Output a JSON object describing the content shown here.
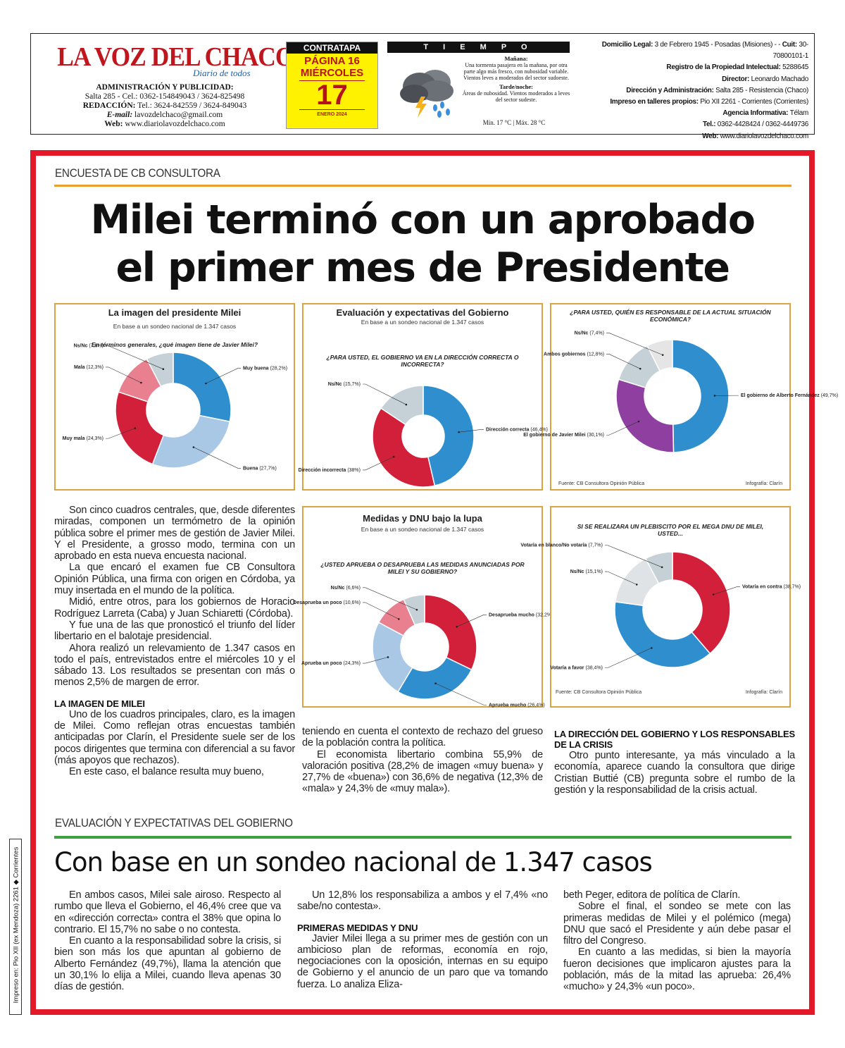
{
  "masthead": {
    "logo_main": "LA VOZ DEL CHACO",
    "logo_sub": "Diario de todos",
    "admin_title": "ADMINISTRACIÓN Y PUBLICIDAD:",
    "admin_line": "Salta 285 - Cel.: 0362-154849043 / 3624-825498",
    "redaccion_label": "REDACCIÓN:",
    "redaccion_line": "Tel.: 3624-842559 / 3624-849043",
    "email_label": "E-mail:",
    "email": "lavozdelchaco@gmail.com",
    "web_label": "Web:",
    "web": "www.diariolavozdelchaco.com"
  },
  "page_box": {
    "section": "CONTRATAPA",
    "page": "PÁGINA 16",
    "weekday": "MIÉRCOLES",
    "day": "17",
    "month": "ENERO 2024"
  },
  "weather": {
    "title": "T I E M P O",
    "tomorrow_label": "Mañana:",
    "tomorrow_text": "Una tormenta pasajera en la mañana, por otra parte algo más fresco, con nubosidad variable. Vientos leves a moderados del sector sudoeste.",
    "night_label": "Tarde/noche:",
    "night_text": "Áreas de nubosidad. Vientos moderados a leves del sector sudeste.",
    "minmax": "Mín. 17 °C | Máx. 28 °C",
    "icon": "storm-cloud-icon"
  },
  "legal": [
    {
      "label": "Domicilio Legal:",
      "value": "3 de Febrero 1945 - Posadas (Misiones) -"
    },
    {
      "label": "Cuit:",
      "value": "30-70800101-1"
    },
    {
      "label": "Registro de la Propiedad Intelectual:",
      "value": "5288645"
    },
    {
      "label": "Director:",
      "value": "Leonardo Machado"
    },
    {
      "label": "Dirección y Administración:",
      "value": "Salta 285 - Resistencia (Chaco)"
    },
    {
      "label": "Impreso en talleres propios:",
      "value": "Pio XII 2261 - Corrientes (Corrientes)"
    },
    {
      "label": "Agencia Informativa:",
      "value": "Télam"
    },
    {
      "label": "Tel.:",
      "value": "0362-4428424 / 0362-4449736"
    },
    {
      "label": "Web:",
      "value": "www.diariolavozdelchaco.com"
    }
  ],
  "article": {
    "kicker": "ENCUESTA DE CB CONSULTORA",
    "headline_1": "Milei terminó con un aprobado",
    "headline_2": "el primer mes de Presidente",
    "intro": [
      "Son cinco cuadros centrales, que, desde diferentes miradas, componen un termómetro de la opinión pública sobre el primer mes de gestión de Javier Milei. Y el Presidente, a grosso modo, termina con un aprobado en esta nueva encuesta nacional.",
      "La que encaró el examen fue CB Consultora Opinión Pública, una firma con origen en Córdoba, ya muy insertada en el mundo de la política.",
      "Midió, entre otros, para los gobiernos de Horacio Rodríguez Larreta (Caba) y Juan Schiaretti (Córdoba).",
      "Y fue una de las que pronosticó el triunfo del líder libertario en el balotaje presidencial.",
      "Ahora realizó un relevamiento de 1.347 casos en todo el país, entrevistados entre el miércoles 10 y el sábado 13. Los resultados se presentan con más o menos 2,5% de margen de error."
    ],
    "h_imagen": "LA IMAGEN DE MILEI",
    "imagen_text": [
      "Uno de los cuadros principales, claro, es la imagen de Milei. Como reflejan otras encuestas también anticipadas por Clarín, el Presidente suele ser de los pocos dirigentes que termina con diferencial a su favor (más apoyos que rechazos).",
      "En este caso, el balance resulta muy bueno,"
    ],
    "mid_text_1": "teniendo en cuenta el contexto de rechazo del grueso de la población contra la política.",
    "mid_text_2": "El economista libertario combina 55,9% de valoración positiva (28,2% de imagen «muy buena» y 27,7% de «buena») con 36,6% de negativa (12,3% de «mala» y 24,3% de «muy mala»).",
    "h_direccion": "LA DIRECCIÓN DEL GOBIERNO Y LOS RESPONSABLES DE LA CRISIS",
    "direccion_text": "Otro punto interesante, ya más vinculado a la economía, aparece cuando la consultora que dirige Cristian Buttié (CB) pregunta sobre el rumbo de la gestión y la responsabilidad de la crisis actual.",
    "kicker2": "EVALUACIÓN Y EXPECTATIVAS DEL GOBIERNO",
    "subhead": "Con base en un sondeo nacional de 1.347 casos",
    "col1": [
      "En ambos casos, Milei sale airoso. Respecto al rumbo que lleva el Gobierno, el 46,4% cree que va en «dirección correcta» contra el 38% que opina lo contrario. El 15,7% no sabe o no contesta.",
      "En cuanto a la responsabilidad sobre la crisis, si bien son más los que apuntan al gobierno de Alberto Fernández (49,7%), llama la atención que un 30,1% lo elija a Milei, cuando lleva apenas 30 días de gestión."
    ],
    "col2_p1": "Un 12,8% los responsabiliza a ambos y el 7,4% «no sabe/no contesta».",
    "h_medidas": "PRIMERAS MEDIDAS Y DNU",
    "col2_p2": "Javier Milei llega a su primer mes de gestión con un ambicioso plan de reformas, economía en rojo, negociaciones con la oposición, internas en su equipo de Gobierno y el anuncio de un paro que va tomando fuerza. Lo analiza Eliza-",
    "col3": [
      "beth Peger, editora de política de Clarín.",
      "Sobre el final, el sondeo se mete con las primeras medidas de Milei y el polémico (mega) DNU que sacó el Presidente y aún debe pasar el filtro del Congreso.",
      "En cuanto a las medidas, si bien la mayoría fueron decisiones que implicaron ajustes para la población, más de la mitad las aprueba: 26,4% «mucho» y 24,3% «un poco»."
    ],
    "print_side": "Impreso en: Pio XII (ex Mendoza) 2261 ◆ Corrientes"
  },
  "chart_data": [
    {
      "type": "pie",
      "title": "La imagen del presidente Milei",
      "subtitle": "En base a un sondeo nacional de 1.347 casos",
      "question": "En términos generales, ¿qué imagen tiene de Javier Milei?",
      "slices": [
        {
          "label": "Muy buena (28,2%)",
          "value": 28.2,
          "color": "#2f8fce"
        },
        {
          "label": "Buena (27,7%)",
          "value": 27.7,
          "color": "#a9c8e6"
        },
        {
          "label": "Muy mala (24,3%)",
          "value": 24.3,
          "color": "#d3203a"
        },
        {
          "label": "Mala (12,3%)",
          "value": 12.3,
          "color": "#e98090"
        },
        {
          "label": "Ns/Nc (7,6%)",
          "value": 7.6,
          "color": "#c5d1d6"
        }
      ]
    },
    {
      "type": "pie",
      "title": "Evaluación y expectativas del Gobierno",
      "subtitle": "En base a un sondeo nacional de 1.347 casos",
      "question": "¿PARA USTED, EL GOBIERNO VA EN LA DIRECCIÓN CORRECTA O INCORRECTA?",
      "slices": [
        {
          "label": "Dirección correcta (46,4%)",
          "value": 46.4,
          "color": "#2f8fce"
        },
        {
          "label": "Dirección incorrecta (38%)",
          "value": 38,
          "color": "#d3203a"
        },
        {
          "label": "Ns/Nc (15,7%)",
          "value": 15.7,
          "color": "#c5d1d6"
        }
      ]
    },
    {
      "type": "pie",
      "title": "",
      "question": "¿PARA USTED, QUIÉN ES RESPONSABLE DE LA ACTUAL SITUACIÓN ECONÓMICA?",
      "source": "Fuente: CB Consultora Opinión Pública",
      "credit": "Infografía: Clarín",
      "slices": [
        {
          "label": "El gobierno de Alberto Fernández (49,7%)",
          "value": 49.7,
          "color": "#2f8fce"
        },
        {
          "label": "El gobierno de Javier Milei (30,1%)",
          "value": 30.1,
          "color": "#8e3fa0"
        },
        {
          "label": "Ambos gobiernos (12,8%)",
          "value": 12.8,
          "color": "#c5d1d6"
        },
        {
          "label": "Ns/Nc (7,4%)",
          "value": 7.4,
          "color": "#e5e5e5"
        }
      ]
    },
    {
      "type": "pie",
      "title": "Medidas y DNU bajo la lupa",
      "subtitle": "En base a un sondeo nacional de 1.347 casos",
      "question": "¿USTED APRUEBA O DESAPRUEBA LAS MEDIDAS ANUNCIADAS POR MILEI Y SU GOBIERNO?",
      "slices": [
        {
          "label": "Desaprueba mucho (32,2%)",
          "value": 32.2,
          "color": "#d3203a"
        },
        {
          "label": "Aprueba mucho (26,4%)",
          "value": 26.4,
          "color": "#2f8fce"
        },
        {
          "label": "Aprueba un poco (24,3%)",
          "value": 24.3,
          "color": "#a9c8e6"
        },
        {
          "label": "Desaprueba un poco (10,6%)",
          "value": 10.6,
          "color": "#e98090"
        },
        {
          "label": "Ns/Nc (6,6%)",
          "value": 6.6,
          "color": "#c5d1d6"
        }
      ]
    },
    {
      "type": "pie",
      "title": "",
      "question": "SI SE REALIZARA UN PLEBISCITO POR EL MEGA DNU DE MILEI, USTED...",
      "source": "Fuente: CB Consultora Opinión Pública",
      "credit": "Infografía: Clarín",
      "slices": [
        {
          "label": "Votaría en contra (38,7%)",
          "value": 38.7,
          "color": "#d3203a"
        },
        {
          "label": "Votaría a favor (38,4%)",
          "value": 38.4,
          "color": "#2f8fce"
        },
        {
          "label": "Ns/Nc (15,1%)",
          "value": 15.1,
          "color": "#e0e3e5"
        },
        {
          "label": "Votaría en blanco/No votaría (7,7%)",
          "value": 7.7,
          "color": "#c5d1d6"
        }
      ]
    }
  ]
}
